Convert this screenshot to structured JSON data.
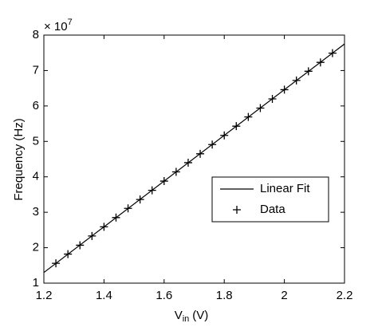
{
  "chart_data": {
    "type": "line",
    "xlabel": {
      "main": "V",
      "sub": "in",
      "unit": "(V)"
    },
    "ylabel": "Frequency (Hz)",
    "y_multiplier": {
      "base": "× 10",
      "exponent": "7"
    },
    "xlim": [
      1.2,
      2.2
    ],
    "xticks": [
      1.2,
      1.4,
      1.6,
      1.8,
      2,
      2.2
    ],
    "ylim": [
      1,
      8
    ],
    "yticks": [
      1,
      2,
      3,
      4,
      5,
      6,
      7,
      8
    ],
    "grid": false,
    "legend": "lower right",
    "series": [
      {
        "name": "Linear Fit",
        "color": "#000000",
        "style": "line",
        "x": [
          1.2,
          2.2
        ],
        "values": [
          1.3,
          7.75
        ]
      },
      {
        "name": "Data",
        "color": "#000000",
        "style": "plus",
        "x": [
          1.24,
          1.28,
          1.32,
          1.36,
          1.4,
          1.44,
          1.48,
          1.52,
          1.56,
          1.6,
          1.64,
          1.68,
          1.72,
          1.76,
          1.8,
          1.84,
          1.88,
          1.92,
          1.96,
          2.0,
          2.04,
          2.08,
          2.12,
          2.16
        ],
        "values": [
          1.56,
          1.82,
          2.07,
          2.33,
          2.59,
          2.85,
          3.11,
          3.36,
          3.62,
          3.88,
          4.14,
          4.4,
          4.65,
          4.91,
          5.17,
          5.43,
          5.69,
          5.94,
          6.2,
          6.46,
          6.72,
          6.98,
          7.23,
          7.49
        ]
      }
    ]
  }
}
